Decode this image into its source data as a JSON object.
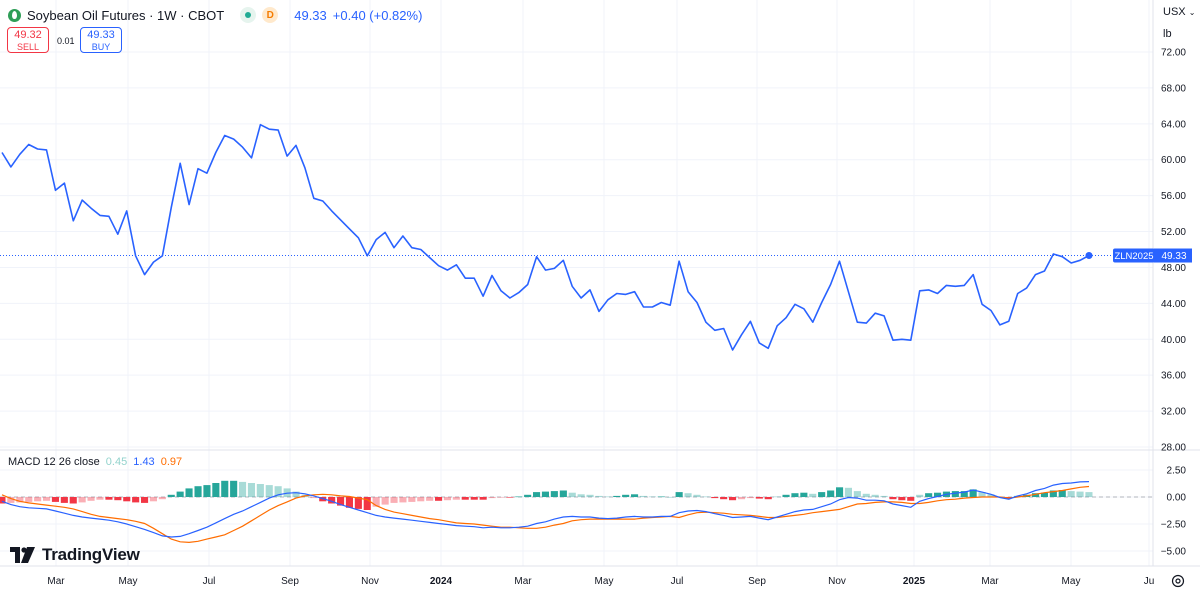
{
  "header": {
    "title": "Soybean Oil Futures · 1W · CBOT",
    "market_status": "D",
    "price": "49.33",
    "change": "+0.40 (+0.82%)",
    "sell_price": "49.32",
    "sell_label": "SELL",
    "spread": "0.01",
    "buy_price": "49.33",
    "buy_label": "BUY",
    "currency": "USX",
    "unit": "lb"
  },
  "price_label": {
    "ticker": "ZLN2025",
    "value": "49.33"
  },
  "colors": {
    "line": "#2962ff",
    "price_tag": "#2962ff",
    "macd": "#2962ff",
    "signal": "#ff6d00",
    "hist_up": "#26a69a",
    "hist_down": "#f23645"
  },
  "macd_legend": {
    "name": "MACD 12 26 close",
    "hist": "0.45",
    "macd": "1.43",
    "signal": "0.97"
  },
  "logo": {
    "text": "TradingView"
  },
  "chart_data": [
    {
      "type": "line",
      "x_ticks": [
        "Mar",
        "May",
        "Jul",
        "Sep",
        "Nov",
        "2024",
        "Mar",
        "May",
        "Jul",
        "Sep",
        "Nov",
        "2025",
        "Mar",
        "May",
        "Ju"
      ],
      "y_ticks": [
        "72.00",
        "68.00",
        "64.00",
        "60.00",
        "56.00",
        "52.00",
        "48.00",
        "44.00",
        "40.00",
        "36.00",
        "32.00",
        "28.00"
      ],
      "ylim": [
        28,
        72
      ],
      "series": [
        {
          "values": [
            60.8,
            59.2,
            60.6,
            61.7,
            61.2,
            61.1,
            56.6,
            57.4,
            53.2,
            55.5,
            54.6,
            53.8,
            53.7,
            51.7,
            54.3,
            49.3,
            47.2,
            48.6,
            49.3,
            54.7,
            59.6,
            55.0,
            59.0,
            58.5,
            60.8,
            62.7,
            62.3,
            61.4,
            60.2,
            63.9,
            63.4,
            63.3,
            60.4,
            61.6,
            59.1,
            55.7,
            55.4,
            54.3,
            53.3,
            52.3,
            51.3,
            49.3,
            51.1,
            51.9,
            50.2,
            51.5,
            50.2,
            50.0,
            49.1,
            48.2,
            47.7,
            48.3,
            46.8,
            46.8,
            44.8,
            47.1,
            45.4,
            44.6,
            45.2,
            46.1,
            49.2,
            47.7,
            47.9,
            48.8,
            45.9,
            44.6,
            45.5,
            43.1,
            44.4,
            45.1,
            45.0,
            45.3,
            43.6,
            43.6,
            44.1,
            43.8,
            48.7,
            45.3,
            44.1,
            41.9,
            41.0,
            41.2,
            38.8,
            40.5,
            42.0,
            39.6,
            39.0,
            41.5,
            42.4,
            43.9,
            43.4,
            41.9,
            44.1,
            46.1,
            48.7,
            45.3,
            41.9,
            41.8,
            42.9,
            42.6,
            39.9,
            40.0,
            39.9,
            45.4,
            45.5,
            45.1,
            46.0,
            45.9,
            46.0,
            47.2,
            43.9,
            43.2,
            41.6,
            42.0,
            45.1,
            45.7,
            47.2,
            47.6,
            49.5,
            49.2,
            48.5,
            48.8,
            49.33
          ]
        }
      ],
      "last_price": 49.33,
      "grid": true
    },
    {
      "type": "bar",
      "y_ticks": [
        "2.50",
        "0.00",
        "−2.50",
        "−5.00"
      ],
      "ylim": [
        -5.0,
        2.5
      ],
      "series": [
        {
          "name": "Histogram",
          "values": [
            -0.6,
            -0.55,
            -0.5,
            -0.45,
            -0.4,
            -0.35,
            -0.45,
            -0.55,
            -0.6,
            -0.5,
            -0.35,
            -0.25,
            -0.25,
            -0.3,
            -0.4,
            -0.5,
            -0.55,
            -0.4,
            -0.2,
            0.2,
            0.5,
            0.8,
            1.0,
            1.1,
            1.3,
            1.5,
            1.5,
            1.4,
            1.3,
            1.2,
            1.1,
            1.0,
            0.8,
            0.5,
            0.2,
            -0.1,
            -0.4,
            -0.6,
            -0.8,
            -1.0,
            -1.1,
            -1.2,
            -0.9,
            -0.7,
            -0.55,
            -0.5,
            -0.45,
            -0.4,
            -0.35,
            -0.35,
            -0.3,
            -0.25,
            -0.25,
            -0.25,
            -0.25,
            -0.1,
            -0.05,
            -0.05,
            0.05,
            0.2,
            0.45,
            0.5,
            0.55,
            0.6,
            0.4,
            0.25,
            0.2,
            0.1,
            0.05,
            0.1,
            0.2,
            0.25,
            0.1,
            0.05,
            0.05,
            0.0,
            0.45,
            0.35,
            0.2,
            0.05,
            -0.1,
            -0.2,
            -0.3,
            -0.2,
            -0.1,
            -0.15,
            -0.2,
            0.05,
            0.2,
            0.35,
            0.4,
            0.3,
            0.45,
            0.6,
            0.9,
            0.85,
            0.55,
            0.3,
            0.2,
            0.1,
            -0.2,
            -0.3,
            -0.35,
            0.2,
            0.35,
            0.4,
            0.5,
            0.55,
            0.55,
            0.7,
            0.45,
            0.25,
            -0.05,
            -0.1,
            0.1,
            0.2,
            0.35,
            0.4,
            0.6,
            0.65,
            0.55,
            0.5,
            0.45
          ]
        },
        {
          "name": "MACD",
          "values": [
            -0.4,
            -0.7,
            -0.9,
            -1.0,
            -1.05,
            -1.1,
            -1.3,
            -1.5,
            -1.7,
            -1.85,
            -1.95,
            -2.05,
            -2.15,
            -2.3,
            -2.5,
            -2.75,
            -3.0,
            -3.3,
            -3.6,
            -3.7,
            -3.65,
            -3.4,
            -3.1,
            -2.8,
            -2.4,
            -2.0,
            -1.6,
            -1.3,
            -0.9,
            -0.5,
            -0.1,
            0.2,
            0.35,
            0.4,
            0.3,
            0.1,
            -0.15,
            -0.4,
            -0.7,
            -0.95,
            -1.2,
            -1.45,
            -1.7,
            -1.85,
            -1.95,
            -2.05,
            -2.15,
            -2.25,
            -2.35,
            -2.45,
            -2.55,
            -2.65,
            -2.7,
            -2.75,
            -2.85,
            -2.8,
            -2.85,
            -2.85,
            -2.8,
            -2.7,
            -2.45,
            -2.3,
            -2.05,
            -1.85,
            -1.8,
            -1.85,
            -1.85,
            -1.95,
            -2.0,
            -1.95,
            -1.85,
            -1.8,
            -1.85,
            -1.85,
            -1.8,
            -1.8,
            -1.45,
            -1.3,
            -1.25,
            -1.35,
            -1.55,
            -1.7,
            -1.9,
            -1.85,
            -1.8,
            -1.95,
            -2.1,
            -1.85,
            -1.6,
            -1.35,
            -1.2,
            -1.15,
            -0.9,
            -0.65,
            -0.25,
            -0.05,
            -0.1,
            -0.3,
            -0.3,
            -0.35,
            -0.65,
            -0.8,
            -0.95,
            -0.4,
            -0.15,
            0.05,
            0.25,
            0.35,
            0.45,
            0.65,
            0.45,
            0.25,
            -0.05,
            -0.2,
            0.1,
            0.3,
            0.6,
            0.8,
            1.1,
            1.25,
            1.3,
            1.4,
            1.43
          ]
        },
        {
          "name": "Signal",
          "values": [
            0.2,
            -0.15,
            -0.4,
            -0.55,
            -0.65,
            -0.75,
            -0.85,
            -0.95,
            -1.1,
            -1.35,
            -1.6,
            -1.8,
            -1.9,
            -2.0,
            -2.1,
            -2.25,
            -2.45,
            -2.9,
            -3.4,
            -3.9,
            -4.15,
            -4.2,
            -4.1,
            -3.9,
            -3.7,
            -3.5,
            -3.1,
            -2.7,
            -2.2,
            -1.7,
            -1.2,
            -0.8,
            -0.45,
            -0.1,
            0.1,
            0.2,
            0.25,
            0.2,
            0.1,
            0.05,
            -0.1,
            -0.25,
            -0.8,
            -1.15,
            -1.4,
            -1.55,
            -1.7,
            -1.85,
            -2.0,
            -2.1,
            -2.25,
            -2.4,
            -2.45,
            -2.5,
            -2.6,
            -2.7,
            -2.8,
            -2.8,
            -2.85,
            -2.9,
            -2.9,
            -2.8,
            -2.6,
            -2.45,
            -2.2,
            -2.1,
            -2.05,
            -2.05,
            -2.05,
            -2.05,
            -2.05,
            -2.05,
            -1.95,
            -1.9,
            -1.85,
            -1.8,
            -1.9,
            -1.65,
            -1.45,
            -1.4,
            -1.45,
            -1.5,
            -1.6,
            -1.65,
            -1.7,
            -1.8,
            -1.9,
            -1.9,
            -1.8,
            -1.7,
            -1.6,
            -1.45,
            -1.35,
            -1.25,
            -1.15,
            -0.9,
            -0.65,
            -0.6,
            -0.5,
            -0.45,
            -0.45,
            -0.5,
            -0.6,
            -0.6,
            -0.5,
            -0.35,
            -0.25,
            -0.2,
            -0.1,
            -0.05,
            0.0,
            0.0,
            0.0,
            -0.1,
            0.0,
            0.1,
            0.25,
            0.4,
            0.5,
            0.6,
            0.75,
            0.9,
            0.97
          ]
        }
      ],
      "grid": true
    }
  ]
}
